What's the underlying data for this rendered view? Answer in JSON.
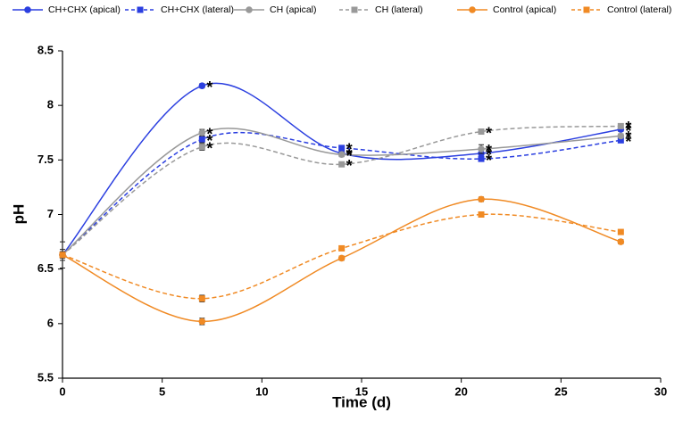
{
  "chart_data": {
    "type": "line",
    "x_label": "Time (d)",
    "y_label": "pH",
    "xlim": [
      0,
      30
    ],
    "xticks": [
      0,
      5,
      10,
      15,
      20,
      25,
      30
    ],
    "ylim": [
      5.5,
      8.5
    ],
    "yticks": [
      5.5,
      6,
      6.5,
      7,
      7.5,
      8,
      8.5
    ],
    "grid": false,
    "legend": "top",
    "smooth": true,
    "x": [
      0,
      7,
      14,
      21,
      28
    ],
    "series": [
      {
        "name": "CH+CHX (apical)",
        "color": "#2b3fe0",
        "dash": false,
        "marker": "circle",
        "values": [
          6.63,
          8.18,
          7.56,
          7.56,
          7.78
        ],
        "errors": [
          0.02,
          0.02,
          0.02,
          0.03,
          0.02
        ],
        "labels": [
          null,
          "*",
          "*",
          "*",
          "*"
        ]
      },
      {
        "name": "CH+CHX (lateral)",
        "color": "#2b3fe0",
        "dash": true,
        "marker": "square",
        "values": [
          6.63,
          7.69,
          7.61,
          7.51,
          7.68
        ],
        "errors": [
          0.02,
          0.03,
          0.02,
          0.02,
          0.02
        ],
        "labels": [
          null,
          "*",
          "*",
          "*",
          "*"
        ]
      },
      {
        "name": "CH (apical)",
        "color": "#999999",
        "dash": false,
        "marker": "circle",
        "values": [
          6.63,
          7.75,
          7.55,
          7.6,
          7.72
        ],
        "errors": [
          0.12,
          0.03,
          0.02,
          0.04,
          0.02
        ],
        "labels": [
          null,
          "*",
          "*",
          "*",
          "*"
        ]
      },
      {
        "name": "CH (lateral)",
        "color": "#999999",
        "dash": true,
        "marker": "square",
        "values": [
          6.63,
          7.62,
          7.46,
          7.76,
          7.81
        ],
        "errors": [
          0.02,
          0.03,
          0.02,
          0.02,
          0.02
        ],
        "labels": [
          null,
          "*",
          "*",
          "*",
          "*"
        ]
      },
      {
        "name": "Control (apical)",
        "color": "#f08a24",
        "dash": false,
        "marker": "circle",
        "values": [
          6.63,
          6.02,
          6.6,
          7.14,
          6.75
        ],
        "errors": [
          0.05,
          0.03,
          0.02,
          0.02,
          0.02
        ],
        "labels": [
          null,
          null,
          null,
          null,
          null
        ]
      },
      {
        "name": "Control (lateral)",
        "color": "#f08a24",
        "dash": true,
        "marker": "square",
        "values": [
          6.63,
          6.23,
          6.69,
          7.0,
          6.84
        ],
        "errors": [
          0.03,
          0.03,
          0.02,
          0.02,
          0.02
        ],
        "labels": [
          null,
          null,
          null,
          null,
          null
        ]
      }
    ]
  }
}
